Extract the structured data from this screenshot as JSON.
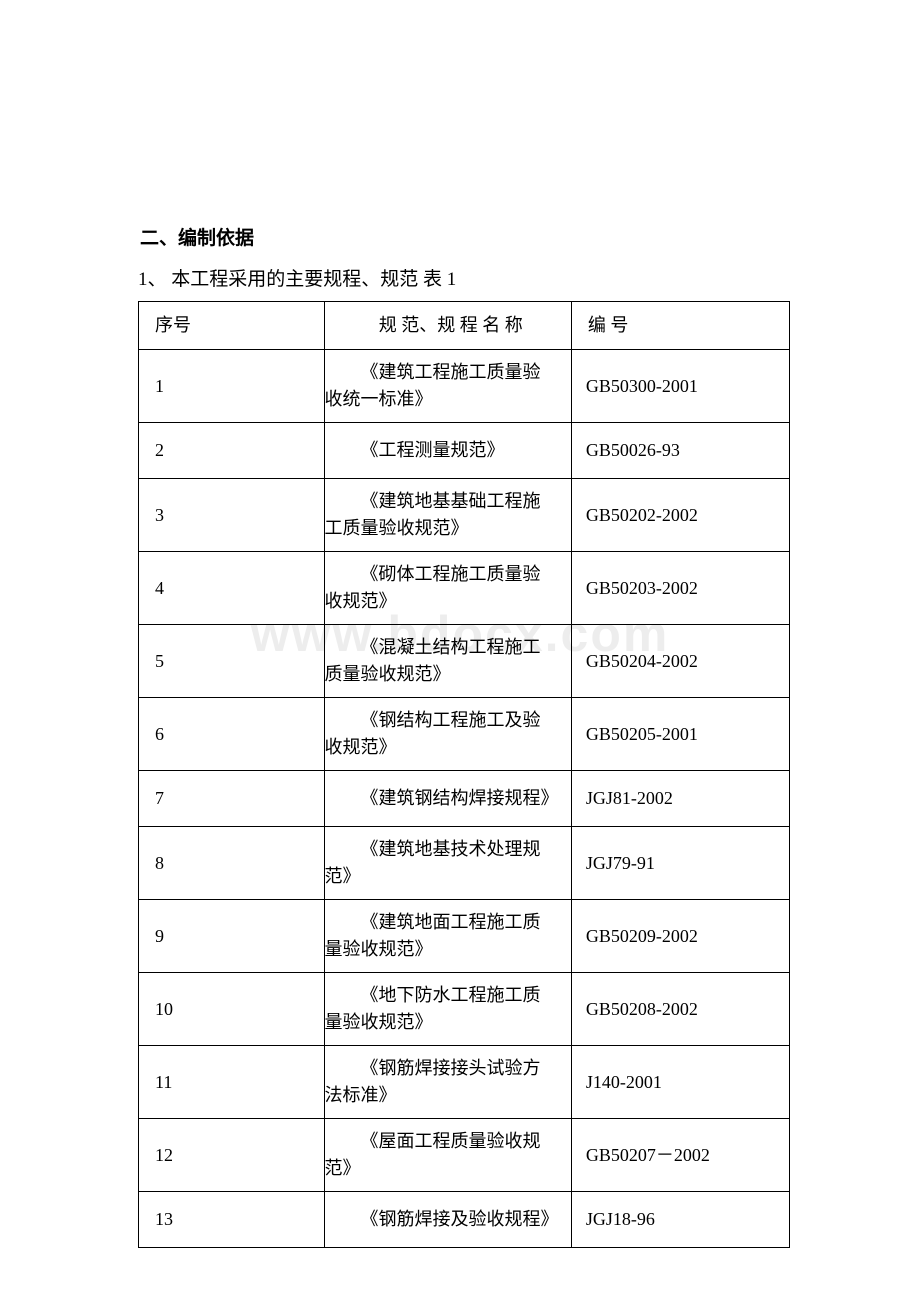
{
  "heading": "二、编制依据",
  "subtitle": "1、 本工程采用的主要规程、规范 表 1",
  "watermark": "www.bdocx.com",
  "table": {
    "type": "table",
    "background_color": "#ffffff",
    "border_color": "#000000",
    "font_size": 18,
    "columns": [
      {
        "key": "seq",
        "label": "序号",
        "width_pct": 28.5,
        "align": "left"
      },
      {
        "key": "name",
        "label": "规 范、规 程 名 称",
        "width_pct": 38,
        "align": "left"
      },
      {
        "key": "code",
        "label": "编 号",
        "width_pct": 33.5,
        "align": "left"
      }
    ],
    "rows": [
      {
        "seq": "1",
        "name": "《建筑工程施工质量验收统一标准》",
        "code": "GB50300-2001"
      },
      {
        "seq": "2",
        "name": "《工程测量规范》",
        "code": "GB50026-93"
      },
      {
        "seq": "3",
        "name": "《建筑地基基础工程施工质量验收规范》",
        "code": "GB50202-2002"
      },
      {
        "seq": "4",
        "name": "《砌体工程施工质量验收规范》",
        "code": "GB50203-2002"
      },
      {
        "seq": "5",
        "name": "《混凝土结构工程施工质量验收规范》",
        "code": "GB50204-2002"
      },
      {
        "seq": "6",
        "name": "《钢结构工程施工及验收规范》",
        "code": "GB50205-2001"
      },
      {
        "seq": "7",
        "name": "《建筑钢结构焊接规程》",
        "code": "JGJ81-2002"
      },
      {
        "seq": "8",
        "name": "《建筑地基技术处理规范》",
        "code": "JGJ79-91"
      },
      {
        "seq": "9",
        "name": "《建筑地面工程施工质量验收规范》",
        "code": "GB50209-2002"
      },
      {
        "seq": "10",
        "name": "《地下防水工程施工质量验收规范》",
        "code": "GB50208-2002"
      },
      {
        "seq": "11",
        "name": "《钢筋焊接接头试验方法标准》",
        "code": "J140-2001"
      },
      {
        "seq": "12",
        "name": "《屋面工程质量验收规范》",
        "code": "GB50207－2002"
      },
      {
        "seq": "13",
        "name": "《钢筋焊接及验收规程》",
        "code": "JGJ18-96"
      }
    ]
  }
}
